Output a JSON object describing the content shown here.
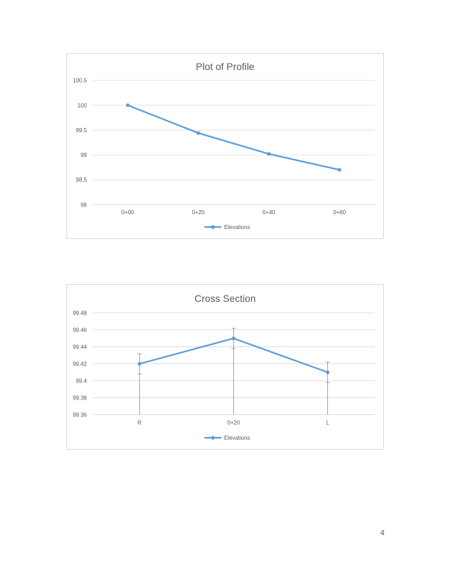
{
  "chart_data": [
    {
      "type": "line",
      "title": "Plot of Profile",
      "categories": [
        "0+00",
        "0+20",
        "0+40",
        "0+60"
      ],
      "series": [
        {
          "name": "Elevations",
          "values": [
            100,
            99.44,
            99.02,
            98.7
          ],
          "color": "#5b9bd5"
        }
      ],
      "ylim": [
        98,
        100.5
      ],
      "yticks": [
        "98",
        "98.5",
        "99",
        "99.5",
        "100",
        "100.5"
      ],
      "grid": true,
      "legend": "bottom"
    },
    {
      "type": "line",
      "title": "Cross Section",
      "categories": [
        "R",
        "0+20",
        "L"
      ],
      "series": [
        {
          "name": "Elevations",
          "values": [
            99.42,
            99.45,
            99.41
          ],
          "color": "#5b9bd5"
        }
      ],
      "error_bars": {
        "plus": [
          0.012,
          0.012,
          0.012
        ],
        "minus": [
          0.012,
          0.012,
          0.012
        ],
        "color": "#8c8c8c"
      },
      "ylim": [
        99.36,
        99.48
      ],
      "yticks": [
        "99.36",
        "99.38",
        "99.4",
        "99.42",
        "99.44",
        "99.46",
        "99.48"
      ],
      "grid": true,
      "legend": "bottom"
    }
  ],
  "page": {
    "number": "4"
  }
}
